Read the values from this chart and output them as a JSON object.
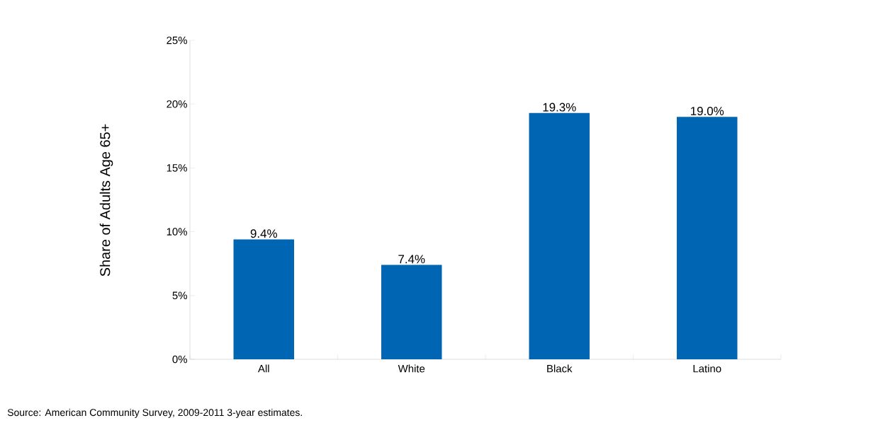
{
  "chart_data": {
    "type": "bar",
    "ylabel": "Share of Adults Age 65+",
    "categories": [
      "All",
      "White",
      "Black",
      "Latino"
    ],
    "values": [
      9.4,
      7.4,
      19.3,
      19.0
    ],
    "value_labels": [
      "9.4%",
      "7.4%",
      "19.3%",
      "19.0%"
    ],
    "color": "#0066b3",
    "ylim": [
      0,
      25
    ],
    "yticks": [
      {
        "value": 0,
        "label": "0%"
      },
      {
        "value": 5,
        "label": "5%"
      },
      {
        "value": 10,
        "label": "10%"
      },
      {
        "value": 15,
        "label": "15%"
      },
      {
        "value": 20,
        "label": "20%"
      },
      {
        "value": 25,
        "label": "25%"
      }
    ],
    "grid": false,
    "annotations": [
      "Source: American Community Survey, 2009-2011 3-year estimates."
    ]
  }
}
